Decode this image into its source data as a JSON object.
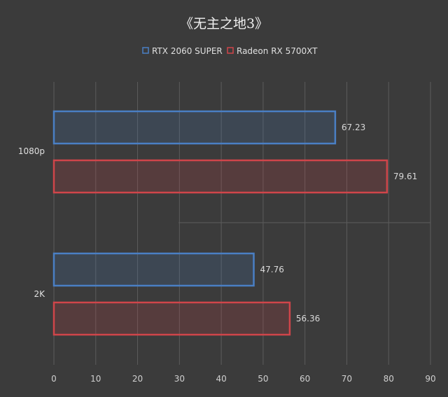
{
  "chart_data": {
    "type": "bar",
    "orientation": "horizontal",
    "title": "《无主之地3》",
    "categories": [
      "1080p",
      "2K"
    ],
    "series": [
      {
        "name": "RTX 2060 SUPER",
        "values": [
          67.23,
          47.76
        ],
        "color": "#4a7fc4"
      },
      {
        "name": "Radeon RX 5700XT",
        "values": [
          79.61,
          56.36
        ],
        "color": "#d0454a"
      }
    ],
    "data_labels": [
      [
        "67.23",
        "79.61"
      ],
      [
        "47.76",
        "56.36"
      ]
    ],
    "xlim": [
      0,
      90
    ],
    "xticks": [
      "0",
      "10",
      "20",
      "30",
      "40",
      "50",
      "60",
      "70",
      "80",
      "90"
    ],
    "grid": true,
    "legend_position": "top"
  }
}
